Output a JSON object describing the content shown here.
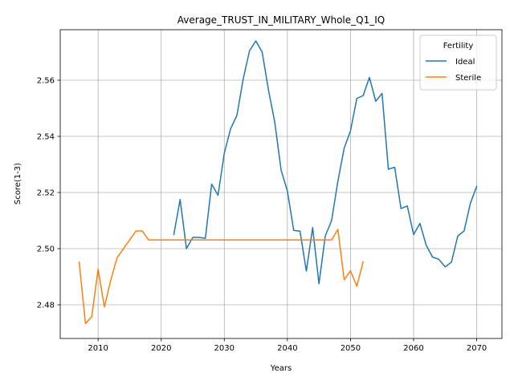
{
  "chart_data": {
    "type": "line",
    "title": "Average_TRUST_IN_MILITARY_Whole_Q1_IQ",
    "xlabel": "Years",
    "ylabel": "Score(1-3)",
    "xlim": [
      2004,
      2074
    ],
    "ylim": [
      2.468,
      2.578
    ],
    "xticks": [
      2010,
      2020,
      2030,
      2040,
      2050,
      2060,
      2070
    ],
    "yticks": [
      2.48,
      2.5,
      2.52,
      2.54,
      2.56
    ],
    "grid": true,
    "legend": {
      "title": "Fertility",
      "placement": "top-right"
    },
    "series": [
      {
        "name": "Ideal",
        "color": "#1f77b4",
        "x": [
          2022,
          2023,
          2024,
          2025,
          2026,
          2027,
          2028,
          2029,
          2030,
          2031,
          2032,
          2033,
          2034,
          2035,
          2036,
          2037,
          2038,
          2039,
          2040,
          2041,
          2042,
          2043,
          2044,
          2045,
          2046,
          2047,
          2048,
          2049,
          2050,
          2051,
          2052,
          2053,
          2054,
          2055,
          2056,
          2057,
          2058,
          2059,
          2060,
          2061,
          2062,
          2063,
          2064,
          2065,
          2066,
          2067,
          2068,
          2069,
          2070
        ],
        "y": [
          2.505,
          2.5175,
          2.5,
          2.504,
          2.504,
          2.5037,
          2.523,
          2.519,
          2.534,
          2.5427,
          2.5475,
          2.5605,
          2.5705,
          2.574,
          2.57,
          2.5565,
          2.545,
          2.528,
          2.5205,
          2.5065,
          2.5062,
          2.492,
          2.5075,
          2.4875,
          2.5045,
          2.51,
          2.524,
          2.5358,
          2.542,
          2.5535,
          2.5545,
          2.561,
          2.5525,
          2.5553,
          2.5283,
          2.529,
          2.5143,
          2.5152,
          2.505,
          2.509,
          2.5012,
          2.497,
          2.4962,
          2.4935,
          2.4952,
          2.5045,
          2.5063,
          2.5162,
          2.5222
        ]
      },
      {
        "name": "Sterile",
        "color": "#ff7f0e",
        "x": [
          2007,
          2008,
          2009,
          2010,
          2011,
          2012,
          2013,
          2014,
          2015,
          2016,
          2017,
          2018,
          2019,
          2020,
          2021,
          2022,
          2023,
          2024,
          2025,
          2026,
          2027,
          2028,
          2029,
          2030,
          2031,
          2032,
          2033,
          2034,
          2035,
          2036,
          2037,
          2038,
          2039,
          2040,
          2041,
          2042,
          2043,
          2044,
          2045,
          2046,
          2047,
          2048,
          2049,
          2050,
          2051,
          2052
        ],
        "y": [
          2.4952,
          2.4733,
          2.4758,
          2.4927,
          2.4792,
          2.4887,
          2.4967,
          2.4999,
          2.5031,
          2.5063,
          2.5063,
          2.5031,
          2.5031,
          2.5031,
          2.5031,
          2.5031,
          2.5031,
          2.5031,
          2.5031,
          2.5031,
          2.5031,
          2.5031,
          2.5031,
          2.5031,
          2.5031,
          2.5031,
          2.5031,
          2.5031,
          2.5031,
          2.5031,
          2.5031,
          2.5031,
          2.5031,
          2.5031,
          2.5031,
          2.5031,
          2.5031,
          2.5031,
          2.5031,
          2.5031,
          2.5031,
          2.5069,
          2.4889,
          2.4921,
          2.4866,
          2.4953
        ]
      }
    ]
  }
}
